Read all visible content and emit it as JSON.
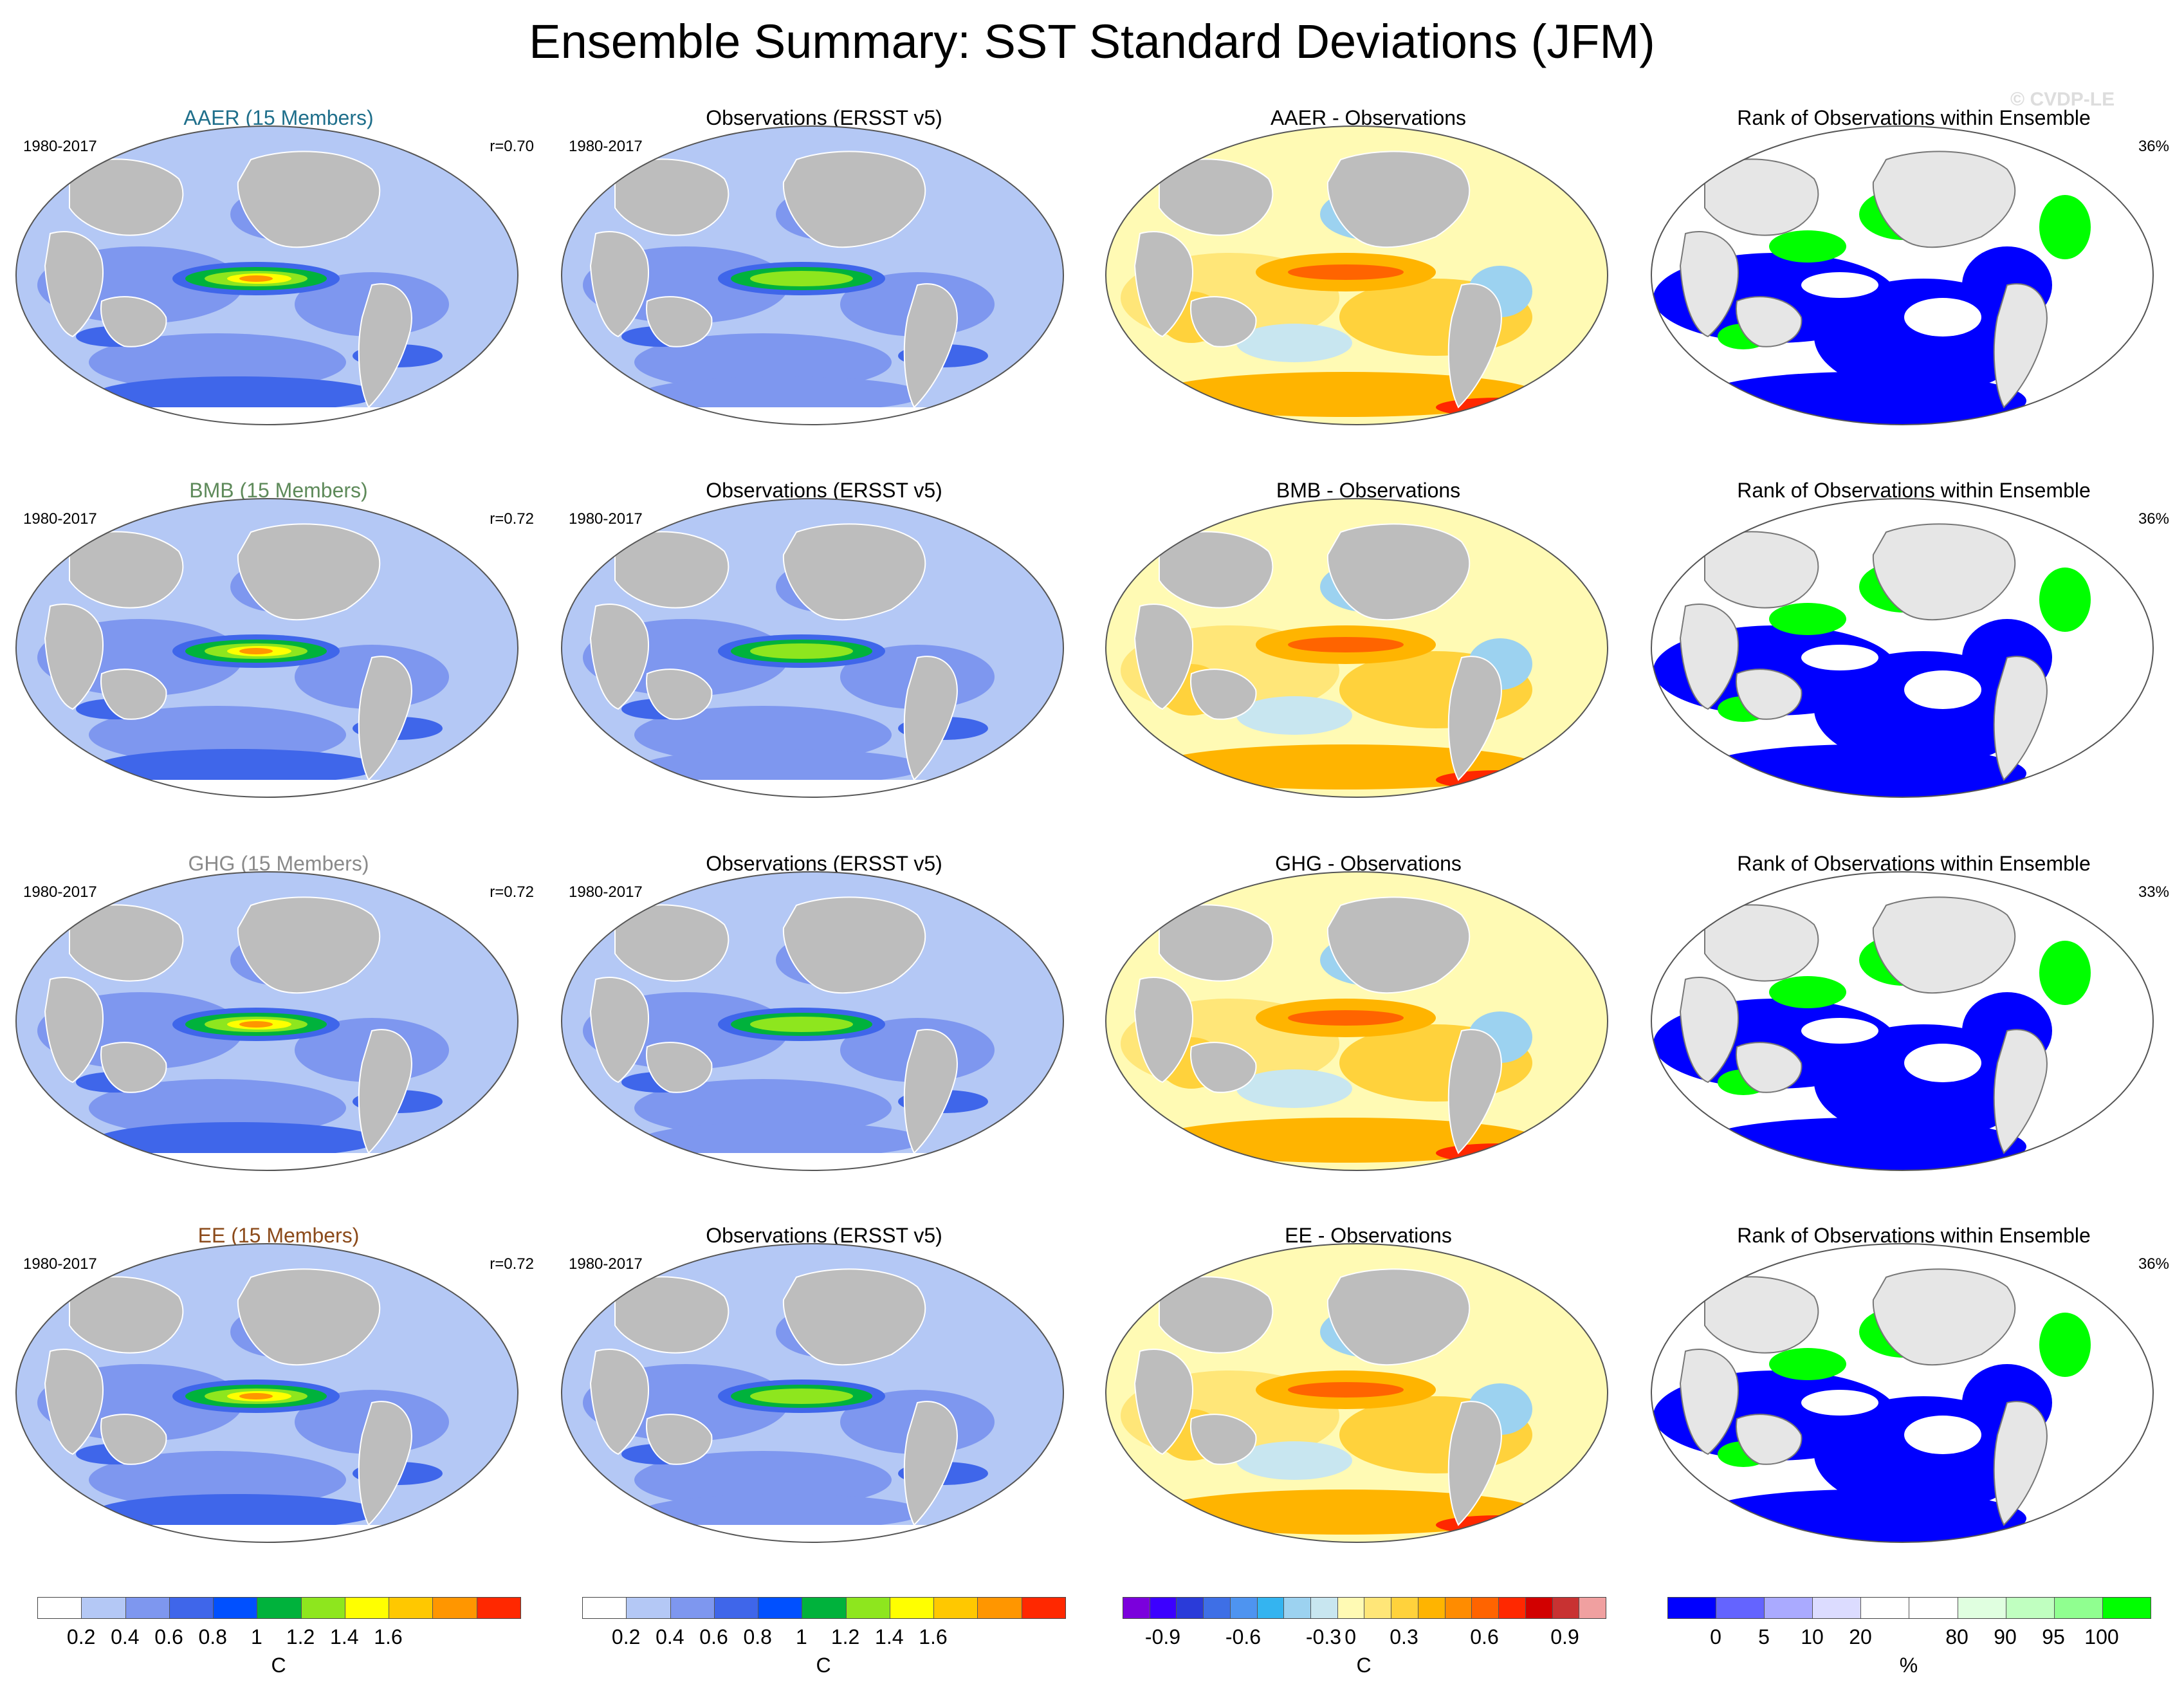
{
  "title": "Ensemble Summary: SST Standard Deviations (JFM)",
  "copyright": "© CVDP-LE",
  "rows": [
    {
      "ensemble": {
        "title": "AAER (15 Members)",
        "color": "#1f6f8b",
        "period": "1980-2017",
        "corr": "r=0.70"
      },
      "obs": {
        "title": "Observations (ERSST v5)",
        "period": "1980-2017"
      },
      "diff": {
        "title": "AAER - Observations"
      },
      "rank": {
        "title": "Rank of Observations within Ensemble",
        "pct": "36%"
      }
    },
    {
      "ensemble": {
        "title": "BMB (15 Members)",
        "color": "#5e8a5a",
        "period": "1980-2017",
        "corr": "r=0.72"
      },
      "obs": {
        "title": "Observations (ERSST v5)",
        "period": "1980-2017"
      },
      "diff": {
        "title": "BMB - Observations"
      },
      "rank": {
        "title": "Rank of Observations within Ensemble",
        "pct": "36%"
      }
    },
    {
      "ensemble": {
        "title": "GHG (15 Members)",
        "color": "#8a8a8a",
        "period": "1980-2017",
        "corr": "r=0.72"
      },
      "obs": {
        "title": "Observations (ERSST v5)",
        "period": "1980-2017"
      },
      "diff": {
        "title": "GHG - Observations"
      },
      "rank": {
        "title": "Rank of Observations within Ensemble",
        "pct": "33%"
      }
    },
    {
      "ensemble": {
        "title": "EE (15 Members)",
        "color": "#8b4a1a",
        "period": "1980-2017",
        "corr": "r=0.72"
      },
      "obs": {
        "title": "Observations (ERSST v5)",
        "period": "1980-2017"
      },
      "diff": {
        "title": "EE - Observations"
      },
      "rank": {
        "title": "Rank of Observations within Ensemble",
        "pct": "36%"
      }
    }
  ],
  "colorbars": {
    "sd": {
      "colors": [
        "#ffffff",
        "#b4c8f5",
        "#7e97ef",
        "#3f66ea",
        "#0050ff",
        "#00b23c",
        "#8ee61e",
        "#ffff00",
        "#ffc800",
        "#ff9600",
        "#ff2800"
      ],
      "ticks": [
        "0.2",
        "0.4",
        "0.6",
        "0.8",
        "1",
        "1.2",
        "1.4",
        "1.6"
      ],
      "unit": "C"
    },
    "diff": {
      "colors": [
        "#7b00dc",
        "#3c00ff",
        "#2a3bd9",
        "#3e6fe6",
        "#4e94f0",
        "#34b4f0",
        "#9cd2f0",
        "#c8e6f0",
        "#fffab4",
        "#ffe678",
        "#ffd23c",
        "#ffb400",
        "#ff8c00",
        "#ff6400",
        "#ff2800",
        "#d20000",
        "#c83232",
        "#f0a0a0"
      ],
      "ticks": [
        "-0.9",
        "-0.6",
        "-0.3",
        "0",
        "0.3",
        "0.6",
        "0.9"
      ],
      "unit": "C"
    },
    "rank": {
      "colors": [
        "#0000ff",
        "#6464ff",
        "#aaaaff",
        "#dcdcff",
        "#ffffff",
        "#ffffff",
        "#e0ffe0",
        "#c0ffc0",
        "#90ff90",
        "#00ff00"
      ],
      "ticks": [
        "0",
        "5",
        "10",
        "20",
        "80",
        "90",
        "95",
        "100"
      ],
      "unit": "%"
    }
  },
  "colors": {
    "land": "#bdbdbd",
    "ocean_base": "#b4c8f5"
  }
}
